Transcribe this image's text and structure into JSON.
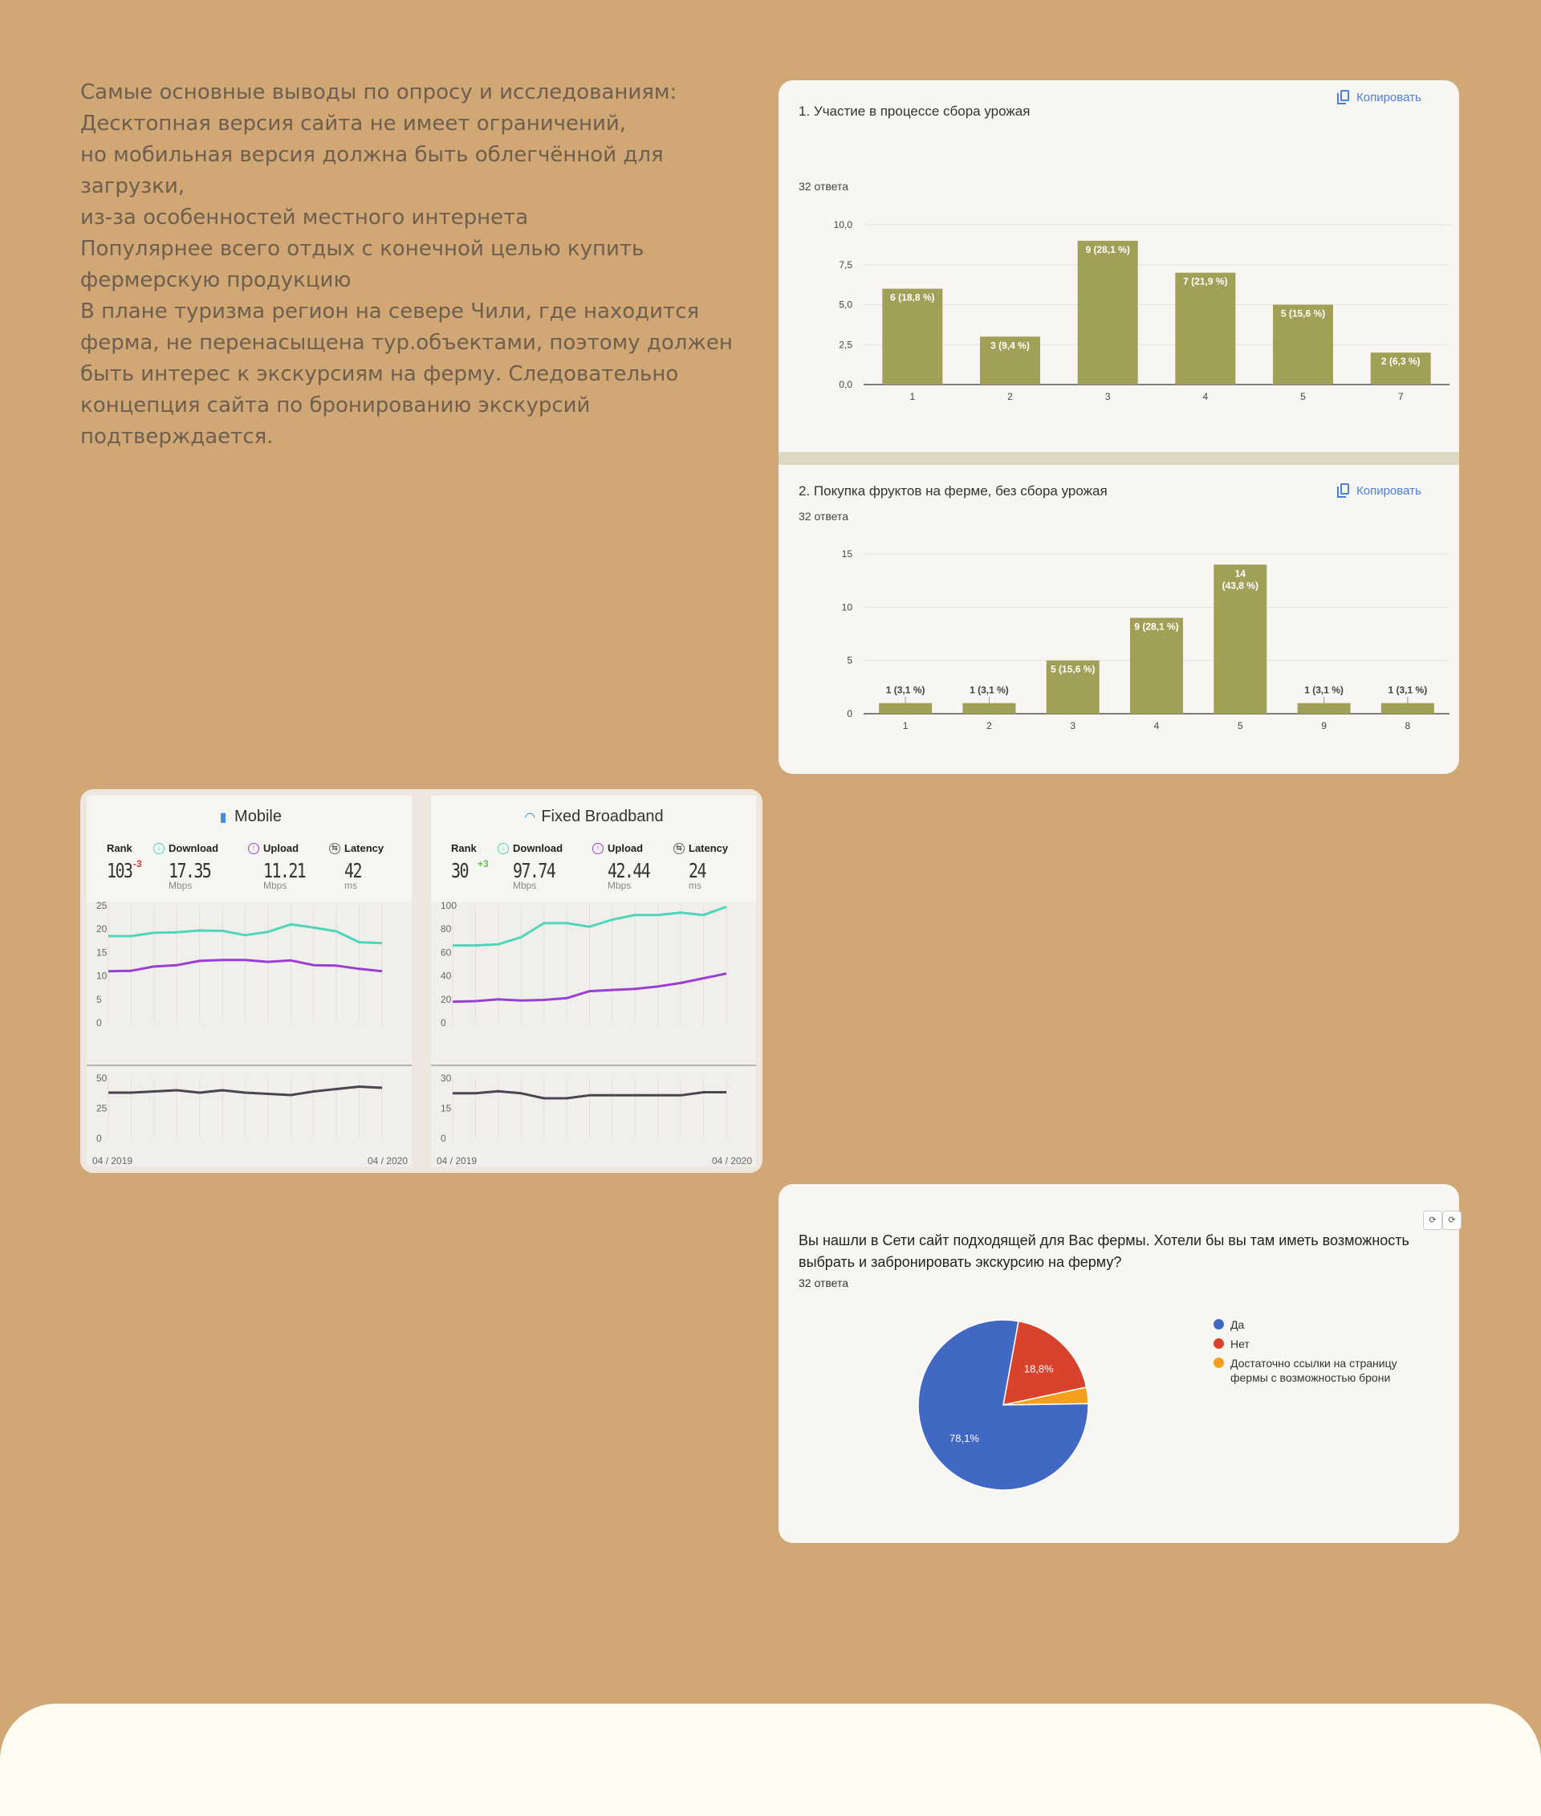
{
  "intro": {
    "lines": [
      "Самые основные выводы по опросу и исследованиям:",
      "Десктопная версия сайта не имеет ограничений,",
      "но мобильная версия должна быть облегчённой для загрузки,",
      "из-за особенностей местного интернета",
      "Популярнее всего отдых с конечной целью купить",
      "фермерскую продукцию",
      "В плане туризма регион на севере Чили, где находится",
      "ферма, не перенасыщена тур.объектами, поэтому должен",
      "быть интерес к экскурсиям на ферму. Следовательно",
      "концепция сайта по бронированию экскурсий",
      "подтверждается."
    ]
  },
  "copy_label": "Копировать",
  "colors": {
    "background": "#d0a775",
    "bar": "#a29f57",
    "pie_yes": "#4169c3",
    "pie_no": "#d8432b",
    "pie_link": "#f4a01c",
    "download": "#4fd5b8",
    "upload": "#9b3fd1",
    "latency": "#4a4552"
  },
  "chart_data": [
    {
      "type": "bar",
      "title": "1. Участие в процессе сбора урожая",
      "count_label": "32 ответа",
      "categories": [
        "1",
        "2",
        "3",
        "4",
        "5",
        "7"
      ],
      "values": [
        6,
        3,
        9,
        7,
        5,
        2
      ],
      "data_labels": [
        "6 (18,8 %)",
        "3 (9,4 %)",
        "9 (28,1 %)",
        "7 (21,9 %)",
        "5 (15,6 %)",
        "2 (6,3 %)"
      ],
      "ylim": [
        0,
        10
      ],
      "yticks": [
        "0,0",
        "2,5",
        "5,0",
        "7,5",
        "10,0"
      ],
      "ytick_values": [
        0,
        2.5,
        5,
        7.5,
        10
      ]
    },
    {
      "type": "bar",
      "title": "2. Покупка фруктов на ферме, без сбора урожая",
      "count_label": "32 ответа",
      "categories": [
        "1",
        "2",
        "3",
        "4",
        "5",
        "9",
        "8"
      ],
      "values": [
        1,
        1,
        5,
        9,
        14,
        1,
        1
      ],
      "data_labels": [
        "1 (3,1 %)",
        "1 (3,1 %)",
        "5 (15,6 %)",
        "9 (28,1 %)",
        "14\n(43,8 %)",
        "1 (3,1 %)",
        "1 (3,1 %)"
      ],
      "ylim": [
        0,
        15
      ],
      "yticks": [
        "0",
        "5",
        "10",
        "15"
      ],
      "ytick_values": [
        0,
        5,
        10,
        15
      ]
    },
    {
      "type": "line",
      "title": "Mobile",
      "x_start": "04 / 2019",
      "x_end": "04 / 2020",
      "upper": {
        "ylim": [
          0,
          25
        ],
        "yticks": [
          0,
          5,
          10,
          15,
          20,
          25
        ],
        "series": [
          {
            "name": "Download",
            "values": [
              18.5,
              18.5,
              19.2,
              19.3,
              19.7,
              19.6,
              18.7,
              19.4,
              21.0,
              20.3,
              19.5,
              17.2,
              17.0
            ]
          },
          {
            "name": "Upload",
            "values": [
              11.0,
              11.1,
              12.0,
              12.3,
              13.2,
              13.4,
              13.4,
              13.0,
              13.3,
              12.3,
              12.2,
              11.5,
              11.0
            ]
          }
        ]
      },
      "lower": {
        "ylim": [
          0,
          50
        ],
        "yticks": [
          0,
          25,
          50
        ],
        "series": [
          {
            "name": "Latency",
            "values": [
              38,
              38,
              39,
              40,
              38,
              40,
              38,
              37,
              36,
              39,
              41,
              43,
              42
            ]
          }
        ]
      }
    },
    {
      "type": "line",
      "title": "Fixed Broadband",
      "x_start": "04 / 2019",
      "x_end": "04 / 2020",
      "upper": {
        "ylim": [
          0,
          100
        ],
        "yticks": [
          0,
          20,
          40,
          60,
          80,
          100
        ],
        "series": [
          {
            "name": "Download",
            "values": [
              66,
              66,
              67,
              73,
              85,
              85,
              82,
              88,
              92,
              92,
              94,
              92,
              99
            ]
          },
          {
            "name": "Upload",
            "values": [
              18,
              18.5,
              20,
              19,
              19.5,
              21,
              27,
              28,
              29,
              31,
              34,
              38,
              42
            ]
          }
        ]
      },
      "lower": {
        "ylim": [
          0,
          30
        ],
        "yticks": [
          0,
          15,
          30
        ],
        "series": [
          {
            "name": "Latency",
            "values": [
              22.5,
              22.5,
              23.5,
              22.5,
              20,
              20,
              21.5,
              21.5,
              21.5,
              21.5,
              21.5,
              23,
              23
            ]
          }
        ]
      }
    },
    {
      "type": "pie",
      "title": "Вы нашли в Сети сайт подходящей для Вас фермы. Хотели бы вы там иметь возможность выбрать и забронировать экскурсию на ферму?",
      "count_label": "32 ответа",
      "slices": [
        {
          "label": "Да",
          "value": 78.1,
          "text": "78,1%"
        },
        {
          "label": "Нет",
          "value": 18.8,
          "text": "18,8%"
        },
        {
          "label": "Достаточно ссылки на страницу фермы с возможностью брони",
          "value": 3.1,
          "text": ""
        }
      ]
    }
  ],
  "speed": {
    "labels": {
      "rank": "Rank",
      "download": "Download",
      "upload": "Upload",
      "latency": "Latency",
      "mbps": "Mbps",
      "ms": "ms"
    },
    "mobile": {
      "title": "Mobile",
      "rank": "103",
      "rank_delta": "-3",
      "download": "17.35",
      "upload": "11.21",
      "latency": "42"
    },
    "broadband": {
      "title": "Fixed Broadband",
      "rank": "30",
      "rank_delta": "+3",
      "download": "97.74",
      "upload": "42.44",
      "latency": "24"
    }
  },
  "pie": {
    "question": "Вы нашли в Сети сайт подходящей для Вас фермы. Хотели бы вы там иметь возможность выбрать и забронировать экскурсию на ферму?",
    "count": "32 ответа",
    "legend": [
      "Да",
      "Нет",
      "Достаточно ссылки на страницу фермы с возможностью брони"
    ]
  }
}
